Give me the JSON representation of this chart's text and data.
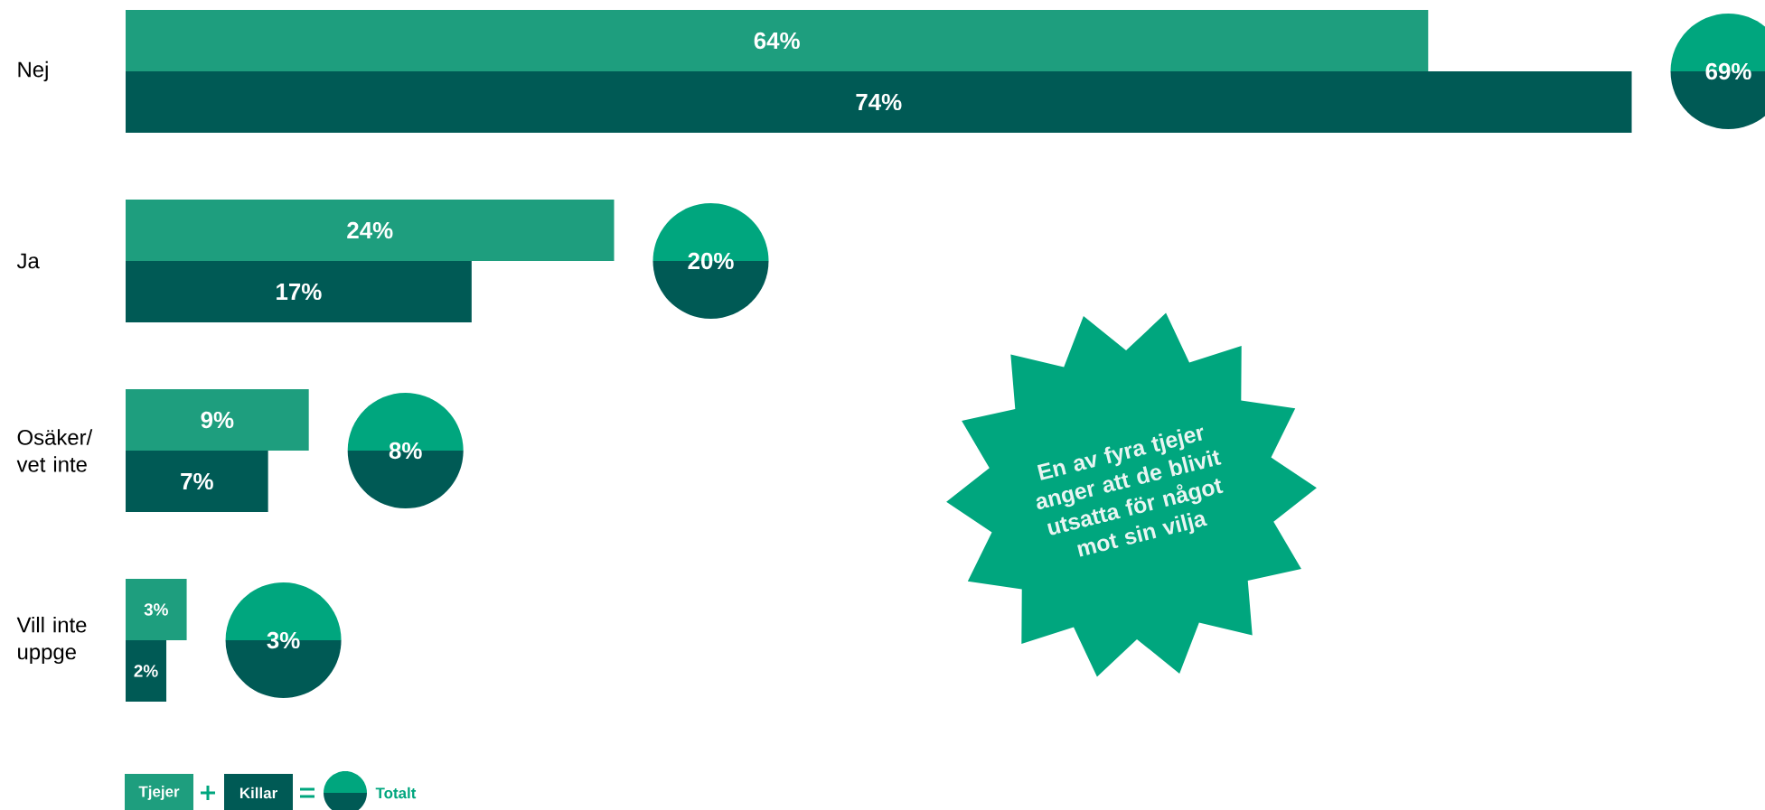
{
  "chart_data": {
    "type": "bar",
    "orientation": "horizontal",
    "categories": [
      "Nej",
      "Ja",
      "Osäker/ vet inte",
      "Vill inte uppge"
    ],
    "series": [
      {
        "name": "Tjejer",
        "color": "#1e9e7e",
        "values": [
          64,
          24,
          9,
          3
        ],
        "value_labels": [
          "64%",
          "24%",
          "9%",
          "3%"
        ]
      },
      {
        "name": "Killar",
        "color": "#005a55",
        "values": [
          74,
          17,
          7,
          2
        ],
        "value_labels": [
          "74%",
          "17%",
          "7%",
          "2%"
        ]
      }
    ],
    "legend": "bottom left",
    "annotations": [
      "En av fyra tjejer anger att de blivit utsatta för något mot sin vilja",
      "69%",
      "20%",
      "8%",
      "3%",
      "Totalt"
    ]
  }
}
